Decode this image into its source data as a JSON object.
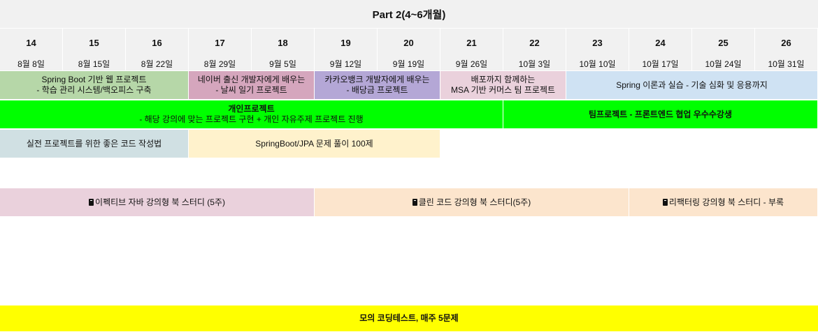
{
  "title": "Part 2(4~6개월)",
  "weeks": [
    "14",
    "15",
    "16",
    "17",
    "18",
    "19",
    "20",
    "21",
    "22",
    "23",
    "24",
    "25",
    "26"
  ],
  "dates": [
    "8월 8일",
    "8월 15일",
    "8월 22일",
    "8월 29일",
    "9월 5일",
    "9월 12일",
    "9월 19일",
    "9월 26일",
    "10월 3일",
    "10월 10일",
    "10월 17일",
    "10월 24일",
    "10월 31일"
  ],
  "row1": [
    {
      "line1": "Spring Boot 기반 웹 프로젝트",
      "line2": "- 학습 관리 시스템/백오피스 구축",
      "color": "#b6d7a8"
    },
    {
      "line1": "네이버 출신 개발자에게 배우는",
      "line2": "- 날씨 일기 프로젝트",
      "color": "#d5a6bd"
    },
    {
      "line1": "카카오뱅크 개발자에게 배우는",
      "line2": "- 배당금 프로젝트",
      "color": "#b4a7d6"
    },
    {
      "line1": "배포까지 함께하는",
      "line2": "MSA 기반 커머스 팀 프로젝트",
      "color": "#ead1dc"
    },
    {
      "line1": "Spring 이론과 실습 - 기술 심화 및 응용까지",
      "color": "#cfe2f3"
    }
  ],
  "row2": [
    {
      "line1": "개인프로젝트",
      "line2": "- 해당 강의에 맞는 프로젝트 구현 + 개인 자유주제 프로젝트 진행",
      "color": "#00ff00"
    },
    {
      "line1": "팀프로젝트 - 프론트엔드 협업 우수수강생",
      "color": "#00ff00"
    }
  ],
  "row3": [
    {
      "label": "실전 프로젝트를 위한 좋은 코드 작성법",
      "color": "#d0e0e3"
    },
    {
      "label": "SpringBoot/JPA 문제 풀이 100제",
      "color": "#fff2cc"
    }
  ],
  "row4": [
    {
      "label": "이펙티브 자바 강의형 북 스터디 (5주)",
      "icon": "book-icon",
      "color": "#ead1dc"
    },
    {
      "label": "클린 코드 강의형 북 스터디(5주)",
      "icon": "book-icon",
      "color": "#fce5cd"
    },
    {
      "label": "리팩터링 강의형 북 스터디 - 부록",
      "icon": "book-icon",
      "color": "#fce5cd"
    }
  ],
  "footer": {
    "label": "모의 코딩테스트, 매주 5문제",
    "color": "#ffff00"
  }
}
